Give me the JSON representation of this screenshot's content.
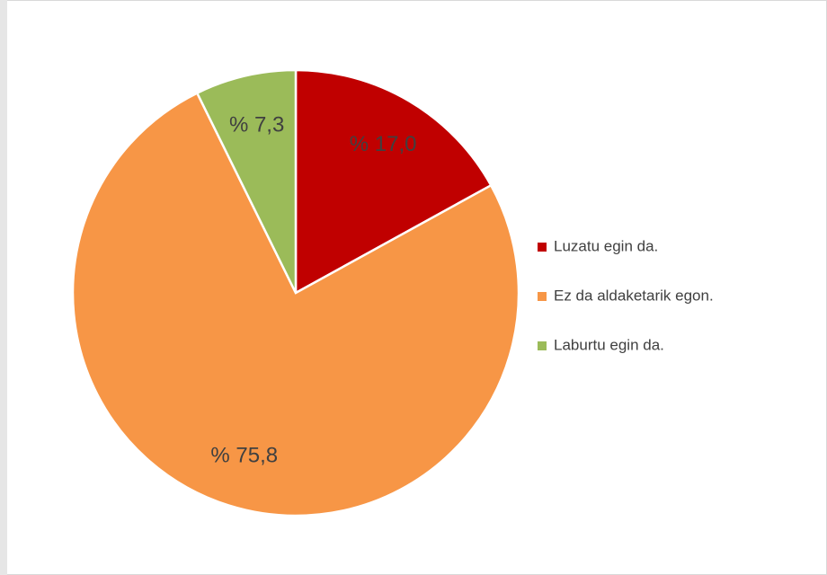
{
  "chart_data": {
    "type": "pie",
    "categories": [
      "Luzatu egin da.",
      "Ez da aldaketarik egon.",
      "Laburtu egin da."
    ],
    "values": [
      17.0,
      75.8,
      7.3
    ],
    "value_labels": [
      "% 17,0",
      "% 75,8",
      "% 7,3"
    ],
    "colors": [
      "#c00000",
      "#f79646",
      "#9bbb59"
    ],
    "legend": "right"
  }
}
